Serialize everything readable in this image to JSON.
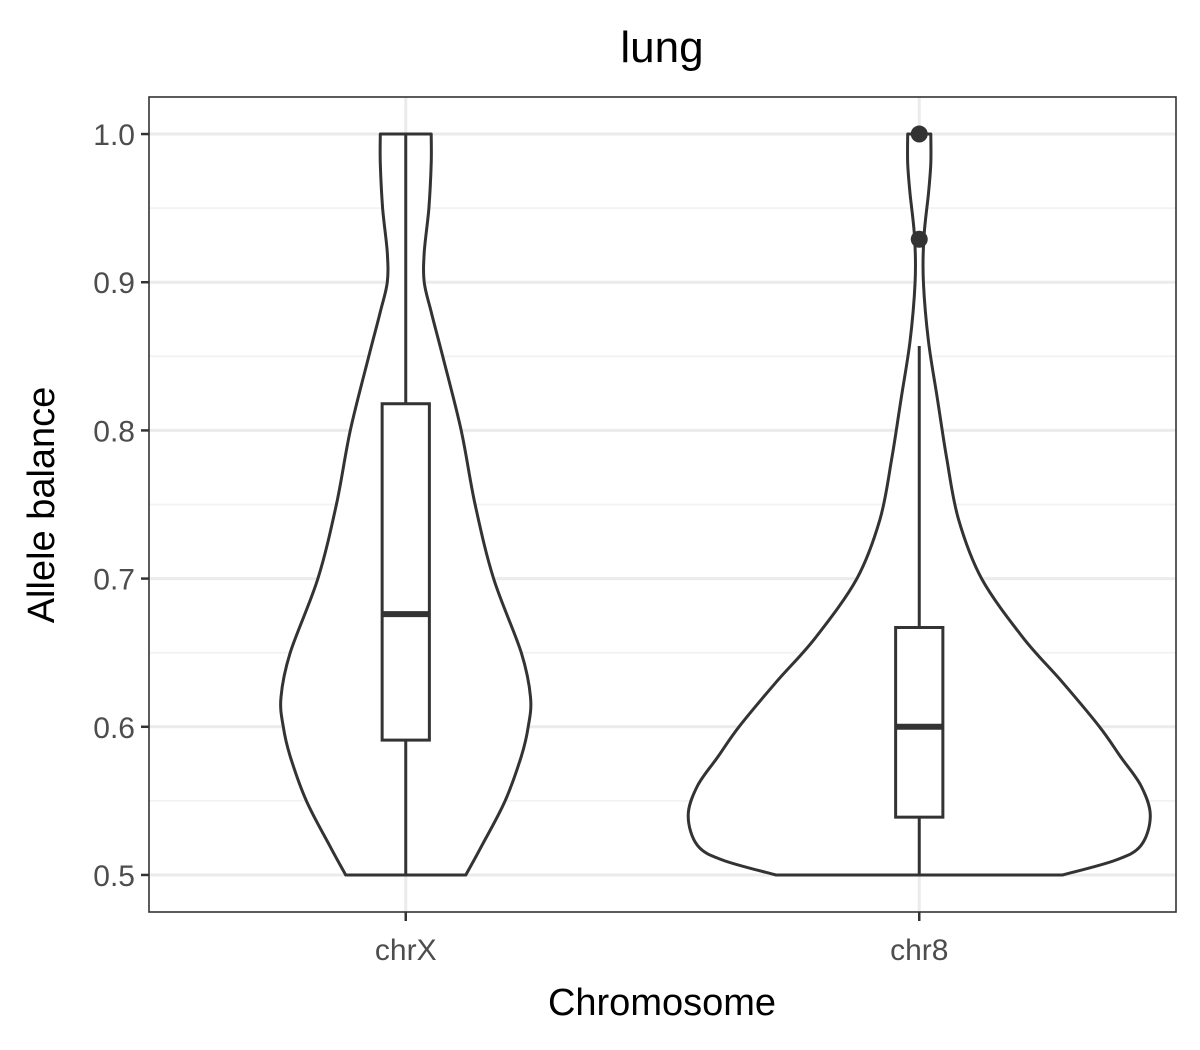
{
  "chart_data": {
    "type": "violin",
    "title": "lung",
    "xlabel": "Chromosome",
    "ylabel": "Allele balance",
    "ylim": [
      0.475,
      1.025
    ],
    "yticks": [
      0.5,
      0.6,
      0.7,
      0.8,
      0.9,
      1.0
    ],
    "ytick_labels": [
      "0.5",
      "0.6",
      "0.7",
      "0.8",
      "0.9",
      "1.0"
    ],
    "grid": true,
    "colors": {
      "outline": "#333333",
      "fill": "#ffffff",
      "grid": "#ebebeb"
    },
    "categories": [
      "chrX",
      "chr8"
    ],
    "groups": [
      {
        "category": "chrX",
        "box": {
          "min": 0.5,
          "q1": 0.591,
          "median": 0.676,
          "q3": 0.818,
          "max": 1.0
        },
        "outliers": [],
        "density": [
          [
            0.5,
            0.26
          ],
          [
            0.52,
            0.33
          ],
          [
            0.55,
            0.43
          ],
          [
            0.58,
            0.5
          ],
          [
            0.6,
            0.53
          ],
          [
            0.62,
            0.54
          ],
          [
            0.65,
            0.5
          ],
          [
            0.7,
            0.38
          ],
          [
            0.75,
            0.3
          ],
          [
            0.8,
            0.24
          ],
          [
            0.85,
            0.16
          ],
          [
            0.88,
            0.11
          ],
          [
            0.9,
            0.08
          ],
          [
            0.92,
            0.08
          ],
          [
            0.95,
            0.1
          ],
          [
            0.98,
            0.11
          ],
          [
            1.0,
            0.11
          ]
        ]
      },
      {
        "category": "chr8",
        "box": {
          "min": 0.5,
          "q1": 0.539,
          "median": 0.6,
          "q3": 0.667,
          "max": 0.857
        },
        "outliers": [
          0.929,
          1.0
        ],
        "density": [
          [
            0.5,
            0.62
          ],
          [
            0.51,
            0.85
          ],
          [
            0.52,
            0.96
          ],
          [
            0.54,
            1.0
          ],
          [
            0.56,
            0.96
          ],
          [
            0.58,
            0.87
          ],
          [
            0.6,
            0.78
          ],
          [
            0.63,
            0.62
          ],
          [
            0.66,
            0.45
          ],
          [
            0.7,
            0.27
          ],
          [
            0.74,
            0.17
          ],
          [
            0.78,
            0.12
          ],
          [
            0.82,
            0.08
          ],
          [
            0.86,
            0.04
          ],
          [
            0.9,
            0.018
          ],
          [
            0.93,
            0.02
          ],
          [
            0.96,
            0.04
          ],
          [
            0.98,
            0.05
          ],
          [
            1.0,
            0.05
          ]
        ]
      }
    ]
  }
}
